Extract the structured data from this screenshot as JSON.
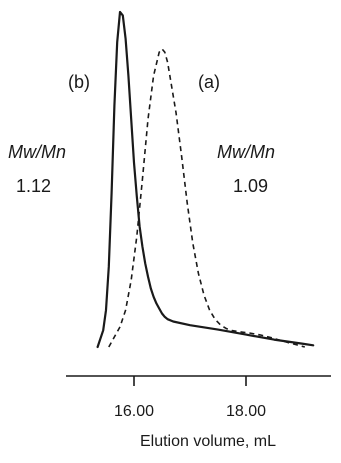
{
  "chart_data": {
    "type": "line",
    "title": "",
    "xlabel": "Elution volume, mL",
    "ylabel": "",
    "xlim": [
      15.0,
      19.3
    ],
    "ylim": [
      0,
      1.05
    ],
    "grid": false,
    "x_ticks": [
      {
        "value": 16.0,
        "label": "16.00"
      },
      {
        "value": 18.0,
        "label": "18.00"
      }
    ],
    "series": [
      {
        "name": "(b)",
        "style": "solid",
        "color": "#1a1a1a",
        "x": [
          15.35,
          15.45,
          15.5,
          15.55,
          15.6,
          15.65,
          15.7,
          15.75,
          15.8,
          15.85,
          15.9,
          15.95,
          16.0,
          16.05,
          16.1,
          16.15,
          16.2,
          16.25,
          16.3,
          16.35,
          16.4,
          16.45,
          16.5,
          16.55,
          16.6,
          16.7,
          17.0,
          17.5,
          18.0,
          18.5,
          19.0,
          19.2
        ],
        "y": [
          0.0,
          0.05,
          0.11,
          0.24,
          0.46,
          0.72,
          0.91,
          1.0,
          0.99,
          0.92,
          0.81,
          0.68,
          0.55,
          0.45,
          0.36,
          0.3,
          0.25,
          0.21,
          0.175,
          0.15,
          0.13,
          0.115,
          0.1,
          0.09,
          0.083,
          0.076,
          0.065,
          0.052,
          0.037,
          0.022,
          0.01,
          0.005
        ]
      },
      {
        "name": "(a)",
        "style": "dashed",
        "color": "#1a1a1a",
        "x": [
          15.55,
          15.65,
          15.75,
          15.85,
          15.95,
          16.05,
          16.15,
          16.25,
          16.35,
          16.45,
          16.5,
          16.55,
          16.6,
          16.65,
          16.75,
          16.85,
          16.95,
          17.05,
          17.15,
          17.25,
          17.35,
          17.45,
          17.55,
          17.65,
          17.75,
          17.9,
          18.05,
          18.25,
          18.45,
          18.65,
          18.85,
          19.05
        ],
        "y": [
          0.0,
          0.03,
          0.06,
          0.11,
          0.2,
          0.33,
          0.5,
          0.68,
          0.81,
          0.88,
          0.89,
          0.88,
          0.85,
          0.8,
          0.7,
          0.57,
          0.43,
          0.31,
          0.22,
          0.155,
          0.11,
          0.082,
          0.065,
          0.055,
          0.049,
          0.045,
          0.042,
          0.036,
          0.028,
          0.018,
          0.009,
          0.0
        ]
      }
    ],
    "annotations": [
      {
        "id": "label_b",
        "text": "(b)",
        "style": "normal"
      },
      {
        "id": "label_a",
        "text": "(a)",
        "style": "normal"
      },
      {
        "id": "mw_b_title",
        "text": "Mw/Mn",
        "style": "italic"
      },
      {
        "id": "mw_b_value",
        "text": "1.12",
        "style": "normal"
      },
      {
        "id": "mw_a_title",
        "text": "Mw/Mn",
        "style": "italic"
      },
      {
        "id": "mw_a_value",
        "text": "1.09",
        "style": "normal"
      }
    ]
  }
}
